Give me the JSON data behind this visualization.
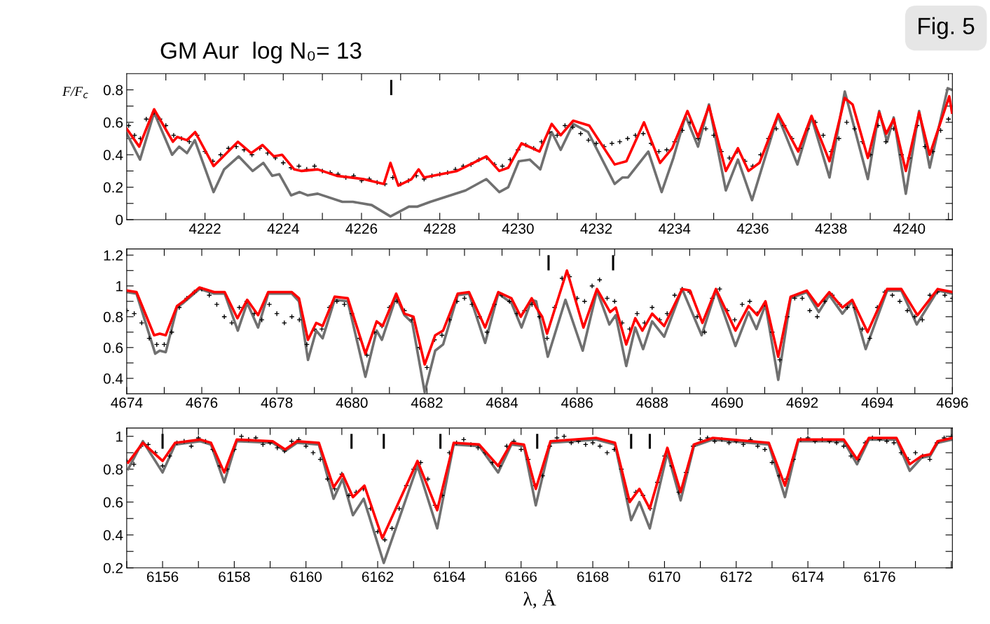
{
  "chart_data": [
    {
      "type": "line",
      "title": "GM Aur  log N₀= 13",
      "ylabel": "F/F$_{c}$",
      "annotations": [
        "Fig. 5"
      ],
      "ref_lines": [
        {
          "axis": "x",
          "value": 4226.76
        }
      ],
      "xlim": [
        4220,
        4241.1
      ],
      "ylim": [
        0,
        0.9
      ],
      "grid": false,
      "line_style": "solid",
      "xticks": [
        {
          "value": 4221,
          "label": null
        },
        4222,
        {
          "value": 4223,
          "label": null
        },
        4224,
        {
          "value": 4225,
          "label": null
        },
        4226,
        {
          "value": 4227,
          "label": null
        },
        4228,
        {
          "value": 4229,
          "label": null
        },
        4230,
        {
          "value": 4231,
          "label": null
        },
        4232,
        {
          "value": 4233,
          "label": null
        },
        4234,
        {
          "value": 4235,
          "label": null
        },
        4236,
        {
          "value": 4237,
          "label": null
        },
        4238,
        {
          "value": 4239,
          "label": null
        },
        4240,
        {
          "value": 4241,
          "label": null
        }
      ],
      "yticks": [
        0,
        {
          "value": 0.1,
          "label": null
        },
        0.2,
        {
          "value": 0.3,
          "label": null
        },
        0.4,
        {
          "value": 0.5,
          "label": null
        },
        0.6,
        {
          "value": 0.7,
          "label": null
        },
        0.8
      ],
      "series": [
        {
          "type": "line",
          "color": "#707070",
          "x": [
            4220.0,
            4220.34,
            4220.7,
            4221.16,
            4221.34,
            4221.54,
            4221.74,
            4222.22,
            4222.49,
            4222.86,
            4223.22,
            4223.49,
            4223.72,
            4223.9,
            4224.2,
            4224.42,
            4224.62,
            4224.88,
            4225.51,
            4225.78,
            4226.26,
            4226.74,
            4227.21,
            4227.42,
            4227.76,
            4228.66,
            4229.19,
            4229.52,
            4229.75,
            4230.02,
            4230.3,
            4230.57,
            4230.86,
            4231.09,
            4231.41,
            4231.79,
            4232.47,
            4232.67,
            4232.81,
            4233.33,
            4233.67,
            4233.97,
            4234.28,
            4234.6,
            4234.88,
            4235.31,
            4235.62,
            4235.98,
            4236.64,
            4237.14,
            4237.5,
            4237.96,
            4238.35,
            4238.94,
            4239.23,
            4239.43,
            4239.6,
            4239.91,
            4240.25,
            4240.52,
            4240.98,
            4241.09
          ],
          "values": [
            0.53,
            0.37,
            0.66,
            0.4,
            0.45,
            0.41,
            0.49,
            0.17,
            0.31,
            0.39,
            0.3,
            0.35,
            0.27,
            0.28,
            0.15,
            0.17,
            0.15,
            0.16,
            0.11,
            0.11,
            0.09,
            0.02,
            0.08,
            0.08,
            0.11,
            0.18,
            0.25,
            0.17,
            0.2,
            0.36,
            0.37,
            0.31,
            0.54,
            0.43,
            0.59,
            0.54,
            0.22,
            0.26,
            0.26,
            0.42,
            0.17,
            0.38,
            0.64,
            0.45,
            0.71,
            0.18,
            0.37,
            0.12,
            0.64,
            0.34,
            0.63,
            0.26,
            0.79,
            0.25,
            0.67,
            0.48,
            0.63,
            0.16,
            0.67,
            0.32,
            0.81,
            0.8
          ]
        },
        {
          "type": "scatter",
          "marker": "cross",
          "color": "#000000",
          "x": [
            4220.05,
            4220.2,
            4220.35,
            4220.5,
            4220.7,
            4220.85,
            4221.0,
            4221.2,
            4221.4,
            4221.6,
            4221.8,
            4222.0,
            4222.2,
            4222.4,
            4222.6,
            4222.8,
            4223.0,
            4223.2,
            4223.4,
            4223.6,
            4223.8,
            4224.0,
            4224.2,
            4224.4,
            4224.6,
            4224.8,
            4225.0,
            4225.2,
            4225.4,
            4225.6,
            4225.8,
            4226.0,
            4226.2,
            4226.4,
            4226.6,
            4226.8,
            4227.0,
            4227.2,
            4227.4,
            4227.6,
            4227.8,
            4228.0,
            4228.2,
            4228.4,
            4228.6,
            4228.8,
            4229.0,
            4229.2,
            4229.4,
            4229.6,
            4229.8,
            4230.0,
            4230.2,
            4230.4,
            4230.6,
            4230.8,
            4231.0,
            4231.2,
            4231.4,
            4231.6,
            4231.8,
            4232.0,
            4232.2,
            4232.4,
            4232.6,
            4232.8,
            4233.0,
            4233.2,
            4233.4,
            4233.6,
            4233.8,
            4234.0,
            4234.2,
            4234.4,
            4234.6,
            4234.8,
            4235.0,
            4235.2,
            4235.4,
            4235.6,
            4235.8,
            4236.0,
            4236.2,
            4236.4,
            4236.6,
            4236.8,
            4237.0,
            4237.2,
            4237.4,
            4237.6,
            4237.8,
            4238.0,
            4238.2,
            4238.4,
            4238.6,
            4238.8,
            4239.0,
            4239.2,
            4239.4,
            4239.6,
            4239.8,
            4240.0,
            4240.2,
            4240.4,
            4240.6,
            4240.8,
            4241.0
          ],
          "values": [
            0.58,
            0.52,
            0.5,
            0.62,
            0.66,
            0.62,
            0.58,
            0.52,
            0.5,
            0.48,
            0.52,
            0.42,
            0.36,
            0.4,
            0.44,
            0.45,
            0.43,
            0.4,
            0.44,
            0.41,
            0.38,
            0.35,
            0.32,
            0.33,
            0.31,
            0.33,
            0.3,
            0.29,
            0.28,
            0.26,
            0.27,
            0.24,
            0.25,
            0.23,
            0.22,
            0.26,
            0.22,
            0.24,
            0.27,
            0.25,
            0.27,
            0.28,
            0.29,
            0.31,
            0.33,
            0.34,
            0.37,
            0.38,
            0.34,
            0.33,
            0.37,
            0.43,
            0.46,
            0.44,
            0.48,
            0.54,
            0.52,
            0.58,
            0.57,
            0.53,
            0.49,
            0.47,
            0.45,
            0.47,
            0.48,
            0.5,
            0.52,
            0.53,
            0.47,
            0.42,
            0.43,
            0.48,
            0.55,
            0.6,
            0.5,
            0.56,
            0.52,
            0.42,
            0.38,
            0.42,
            0.36,
            0.33,
            0.4,
            0.5,
            0.56,
            0.58,
            0.5,
            0.44,
            0.56,
            0.6,
            0.52,
            0.42,
            0.5,
            0.6,
            0.56,
            0.48,
            0.4,
            0.58,
            0.48,
            0.56,
            0.4,
            0.38,
            0.58,
            0.45,
            0.42,
            0.55,
            0.62
          ]
        },
        {
          "type": "line",
          "color": "#ff0000",
          "x": [
            4220.0,
            4220.32,
            4220.7,
            4221.18,
            4221.29,
            4221.54,
            4221.75,
            4222.22,
            4222.84,
            4223.18,
            4223.47,
            4223.76,
            4223.97,
            4224.28,
            4224.47,
            4224.88,
            4225.37,
            4226.05,
            4226.57,
            4226.74,
            4226.94,
            4227.28,
            4227.46,
            4227.6,
            4228.44,
            4229.19,
            4229.52,
            4229.75,
            4230.09,
            4230.55,
            4230.86,
            4231.09,
            4231.41,
            4231.82,
            4232.47,
            4232.77,
            4233.22,
            4233.63,
            4233.94,
            4234.33,
            4234.6,
            4234.88,
            4235.31,
            4235.62,
            4235.89,
            4236.17,
            4236.65,
            4237.16,
            4237.5,
            4237.96,
            4238.35,
            4238.55,
            4238.94,
            4239.23,
            4239.41,
            4239.6,
            4239.91,
            4240.25,
            4240.52,
            4241.02,
            4241.09
          ],
          "values": [
            0.56,
            0.45,
            0.68,
            0.48,
            0.51,
            0.49,
            0.54,
            0.33,
            0.48,
            0.41,
            0.46,
            0.39,
            0.4,
            0.31,
            0.3,
            0.31,
            0.27,
            0.25,
            0.22,
            0.35,
            0.21,
            0.25,
            0.31,
            0.26,
            0.3,
            0.39,
            0.3,
            0.32,
            0.47,
            0.42,
            0.59,
            0.52,
            0.61,
            0.58,
            0.34,
            0.36,
            0.6,
            0.35,
            0.44,
            0.67,
            0.51,
            0.7,
            0.3,
            0.44,
            0.3,
            0.35,
            0.65,
            0.42,
            0.64,
            0.36,
            0.75,
            0.71,
            0.38,
            0.66,
            0.53,
            0.62,
            0.3,
            0.66,
            0.4,
            0.76,
            0.66
          ]
        }
      ]
    },
    {
      "type": "line",
      "ref_lines": [
        {
          "axis": "x",
          "value": 4685.24
        },
        {
          "axis": "x",
          "value": 4686.96
        }
      ],
      "xlim": [
        4674,
        4696
      ],
      "ylim": [
        0.3,
        1.24
      ],
      "grid": false,
      "line_style": "solid",
      "xticks": [
        4674,
        {
          "value": 4675,
          "label": null
        },
        4676,
        {
          "value": 4677,
          "label": null
        },
        4678,
        {
          "value": 4679,
          "label": null
        },
        4680,
        {
          "value": 4681,
          "label": null
        },
        4682,
        {
          "value": 4683,
          "label": null
        },
        4684,
        {
          "value": 4685,
          "label": null
        },
        4686,
        {
          "value": 4687,
          "label": null
        },
        4688,
        {
          "value": 4689,
          "label": null
        },
        4690,
        {
          "value": 4691,
          "label": null
        },
        4692,
        {
          "value": 4693,
          "label": null
        },
        4694,
        {
          "value": 4695,
          "label": null
        },
        4696
      ],
      "yticks": [
        0.4,
        {
          "value": 0.5,
          "label": null
        },
        0.6,
        {
          "value": 0.7,
          "label": null
        },
        0.8,
        {
          "value": 0.9,
          "label": null
        },
        1,
        {
          "value": 1.1,
          "label": null
        },
        1.2
      ],
      "series": [
        {
          "type": "line",
          "color": "#707070",
          "x": [
            4674.0,
            4674.26,
            4674.76,
            4674.88,
            4675.04,
            4675.34,
            4675.51,
            4675.94,
            4676.33,
            4676.61,
            4676.96,
            4677.21,
            4677.5,
            4677.77,
            4678.4,
            4678.59,
            4678.83,
            4679.05,
            4679.22,
            4679.54,
            4679.89,
            4680.36,
            4680.66,
            4680.8,
            4681.18,
            4681.4,
            4681.61,
            4681.94,
            4682.22,
            4682.43,
            4682.82,
            4683.12,
            4683.55,
            4683.9,
            4684.25,
            4684.52,
            4684.79,
            4684.91,
            4685.22,
            4685.69,
            4686.15,
            4686.53,
            4686.86,
            4687.03,
            4687.31,
            4687.55,
            4687.76,
            4688.0,
            4688.32,
            4688.8,
            4689.32,
            4689.7,
            4690.22,
            4690.57,
            4690.78,
            4691.02,
            4691.36,
            4691.69,
            4692.12,
            4692.44,
            4692.72,
            4693.07,
            4693.33,
            4693.69,
            4694.26,
            4694.64,
            4695.05,
            4695.61,
            4696.0
          ],
          "values": [
            0.96,
            0.95,
            0.56,
            0.58,
            0.57,
            0.86,
            0.89,
            0.98,
            0.95,
            0.95,
            0.71,
            0.89,
            0.73,
            0.95,
            0.95,
            0.9,
            0.52,
            0.71,
            0.66,
            0.91,
            0.9,
            0.41,
            0.71,
            0.65,
            0.93,
            0.81,
            0.76,
            0.31,
            0.58,
            0.62,
            0.94,
            0.95,
            0.63,
            0.95,
            0.89,
            0.73,
            0.91,
            0.9,
            0.54,
            0.91,
            0.58,
            0.97,
            0.75,
            0.81,
            0.48,
            0.73,
            0.59,
            0.77,
            0.67,
            0.98,
            0.68,
            0.97,
            0.61,
            0.83,
            0.72,
            0.88,
            0.39,
            0.92,
            0.96,
            0.83,
            0.94,
            0.82,
            0.9,
            0.59,
            0.97,
            0.97,
            0.75,
            0.97,
            0.95
          ]
        },
        {
          "type": "scatter",
          "marker": "cross",
          "color": "#000000",
          "x": [
            4674.0,
            4674.2,
            4674.4,
            4674.6,
            4674.8,
            4675.0,
            4675.2,
            4675.4,
            4675.6,
            4675.8,
            4676.0,
            4676.2,
            4676.4,
            4676.6,
            4676.8,
            4677.0,
            4677.2,
            4677.4,
            4677.6,
            4677.8,
            4678.0,
            4678.2,
            4678.4,
            4678.6,
            4678.8,
            4679.0,
            4679.2,
            4679.4,
            4679.6,
            4679.8,
            4680.0,
            4680.2,
            4680.4,
            4680.6,
            4680.8,
            4681.0,
            4681.2,
            4681.4,
            4681.6,
            4681.8,
            4682.0,
            4682.2,
            4682.4,
            4682.6,
            4682.8,
            4683.0,
            4683.2,
            4683.4,
            4683.6,
            4683.8,
            4684.0,
            4684.2,
            4684.4,
            4684.6,
            4684.8,
            4685.0,
            4685.2,
            4685.4,
            4685.6,
            4685.8,
            4686.0,
            4686.2,
            4686.4,
            4686.6,
            4686.8,
            4687.0,
            4687.2,
            4687.4,
            4687.6,
            4687.8,
            4688.0,
            4688.2,
            4688.4,
            4688.6,
            4688.8,
            4689.0,
            4689.2,
            4689.4,
            4689.6,
            4689.8,
            4690.0,
            4690.2,
            4690.4,
            4690.6,
            4690.8,
            4691.0,
            4691.2,
            4691.4,
            4691.6,
            4691.8,
            4692.0,
            4692.2,
            4692.4,
            4692.6,
            4692.8,
            4693.0,
            4693.2,
            4693.4,
            4693.6,
            4693.8,
            4694.0,
            4694.2,
            4694.4,
            4694.6,
            4694.8,
            4695.0,
            4695.2,
            4695.4,
            4695.6,
            4695.8,
            4696.0
          ],
          "values": [
            0.84,
            0.82,
            0.76,
            0.66,
            0.62,
            0.62,
            0.7,
            0.86,
            0.92,
            0.96,
            0.98,
            0.94,
            0.88,
            0.8,
            0.76,
            0.86,
            0.9,
            0.82,
            0.78,
            0.88,
            0.82,
            0.76,
            0.8,
            0.78,
            0.62,
            0.72,
            0.72,
            0.86,
            0.9,
            0.88,
            0.82,
            0.66,
            0.55,
            0.7,
            0.74,
            0.86,
            0.9,
            0.84,
            0.78,
            0.6,
            0.47,
            0.65,
            0.68,
            0.78,
            0.9,
            0.92,
            0.88,
            0.8,
            0.7,
            0.88,
            0.94,
            0.9,
            0.82,
            0.84,
            0.88,
            0.8,
            0.66,
            0.86,
            1.05,
            1.06,
            0.92,
            0.9,
            1.0,
            1.04,
            0.92,
            0.9,
            0.76,
            0.72,
            0.82,
            0.76,
            0.86,
            0.78,
            0.82,
            0.94,
            0.98,
            0.96,
            0.8,
            0.7,
            0.92,
            0.98,
            0.84,
            0.78,
            0.88,
            0.9,
            0.82,
            0.88,
            0.7,
            0.52,
            0.8,
            0.92,
            0.92,
            0.84,
            0.8,
            0.9,
            0.94,
            0.88,
            0.86,
            0.86,
            0.72,
            0.66,
            0.86,
            0.96,
            0.94,
            0.9,
            0.84,
            0.8,
            0.78,
            0.94,
            0.96,
            0.94,
            0.92
          ]
        },
        {
          "type": "line",
          "color": "#ff0000",
          "x": [
            4674.0,
            4674.26,
            4674.73,
            4674.88,
            4675.04,
            4675.34,
            4675.51,
            4675.94,
            4676.33,
            4676.61,
            4676.95,
            4677.21,
            4677.5,
            4677.77,
            4678.4,
            4678.59,
            4678.83,
            4679.05,
            4679.22,
            4679.54,
            4679.89,
            4680.36,
            4680.66,
            4680.82,
            4681.18,
            4681.4,
            4681.64,
            4681.94,
            4682.22,
            4682.43,
            4682.82,
            4683.12,
            4683.55,
            4683.9,
            4684.25,
            4684.5,
            4684.79,
            4684.91,
            4685.07,
            4685.2,
            4685.73,
            4686.17,
            4686.53,
            4686.88,
            4687.03,
            4687.31,
            4687.55,
            4687.74,
            4688.0,
            4688.32,
            4688.8,
            4689.01,
            4689.34,
            4689.7,
            4690.22,
            4690.57,
            4690.8,
            4691.02,
            4691.36,
            4691.69,
            4692.12,
            4692.42,
            4692.72,
            4693.07,
            4693.33,
            4693.74,
            4694.26,
            4694.64,
            4695.07,
            4695.61,
            4696.0
          ],
          "values": [
            0.97,
            0.96,
            0.68,
            0.69,
            0.68,
            0.87,
            0.9,
            0.99,
            0.96,
            0.96,
            0.79,
            0.91,
            0.81,
            0.96,
            0.96,
            0.92,
            0.65,
            0.76,
            0.74,
            0.93,
            0.92,
            0.56,
            0.77,
            0.74,
            0.95,
            0.82,
            0.8,
            0.49,
            0.68,
            0.71,
            0.95,
            0.96,
            0.73,
            0.96,
            0.92,
            0.8,
            0.92,
            0.86,
            0.8,
            0.69,
            1.1,
            0.73,
            0.98,
            0.83,
            0.86,
            0.62,
            0.79,
            0.71,
            0.82,
            0.74,
            0.98,
            0.97,
            0.76,
            0.98,
            0.71,
            0.87,
            0.81,
            0.9,
            0.54,
            0.93,
            0.97,
            0.87,
            0.96,
            0.86,
            0.91,
            0.7,
            0.98,
            0.98,
            0.81,
            0.98,
            0.96
          ]
        }
      ]
    },
    {
      "type": "line",
      "xlabel": "λ, Å",
      "ref_lines": [
        {
          "axis": "x",
          "value": 6156.0
        },
        {
          "axis": "x",
          "value": 6161.27
        },
        {
          "axis": "x",
          "value": 6162.17
        },
        {
          "axis": "x",
          "value": 6163.75
        },
        {
          "axis": "x",
          "value": 6166.45
        },
        {
          "axis": "x",
          "value": 6169.07
        },
        {
          "axis": "x",
          "value": 6169.59
        }
      ],
      "xlim": [
        6155,
        6178.03
      ],
      "ylim": [
        0.2,
        1.05
      ],
      "grid": false,
      "line_style": "solid",
      "xticks": [
        {
          "value": 6155,
          "label": null
        },
        6156,
        {
          "value": 6157,
          "label": null
        },
        6158,
        {
          "value": 6159,
          "label": null
        },
        6160,
        {
          "value": 6161,
          "label": null
        },
        6162,
        {
          "value": 6163,
          "label": null
        },
        6164,
        {
          "value": 6165,
          "label": null
        },
        6166,
        {
          "value": 6167,
          "label": null
        },
        6168,
        {
          "value": 6169,
          "label": null
        },
        6170,
        {
          "value": 6171,
          "label": null
        },
        6172,
        {
          "value": 6173,
          "label": null
        },
        6174,
        {
          "value": 6175,
          "label": null
        },
        6176,
        {
          "value": 6177,
          "label": null
        },
        {
          "value": 6178,
          "label": null
        }
      ],
      "yticks": [
        0.2,
        {
          "value": 0.3,
          "label": null
        },
        0.4,
        {
          "value": 0.5,
          "label": null
        },
        0.6,
        {
          "value": 0.7,
          "label": null
        },
        0.8,
        {
          "value": 0.9,
          "label": null
        },
        1
      ],
      "series": [
        {
          "type": "line",
          "color": "#707070",
          "x": [
            6155.04,
            6155.45,
            6156.0,
            6156.35,
            6157.05,
            6157.35,
            6157.72,
            6158.07,
            6159.07,
            6159.42,
            6159.75,
            6160.36,
            6160.77,
            6161.02,
            6161.31,
            6161.61,
            6162.17,
            6163.11,
            6163.66,
            6164.12,
            6164.83,
            6165.36,
            6165.73,
            6166.08,
            6166.41,
            6166.82,
            6168.09,
            6168.62,
            6169.07,
            6169.3,
            6169.59,
            6170.08,
            6170.45,
            6170.82,
            6171.35,
            6172.91,
            6173.36,
            6173.73,
            6175.0,
            6175.37,
            6175.7,
            6176.47,
            6176.84,
            6177.17,
            6177.41,
            6177.62,
            6178.03
          ],
          "values": [
            0.8,
            0.97,
            0.78,
            0.95,
            0.97,
            0.95,
            0.72,
            0.97,
            0.96,
            0.91,
            0.96,
            0.95,
            0.62,
            0.74,
            0.52,
            0.62,
            0.23,
            0.82,
            0.44,
            0.95,
            0.94,
            0.78,
            0.95,
            0.94,
            0.58,
            0.96,
            0.98,
            0.95,
            0.49,
            0.6,
            0.44,
            0.9,
            0.61,
            0.94,
            0.98,
            0.95,
            0.63,
            0.97,
            0.97,
            0.83,
            0.98,
            0.98,
            0.79,
            0.87,
            0.88,
            0.96,
            0.98
          ]
        },
        {
          "type": "scatter",
          "marker": "cross",
          "color": "#000000",
          "x": [
            6155.0,
            6155.2,
            6155.4,
            6155.6,
            6155.8,
            6156.0,
            6156.2,
            6156.4,
            6156.6,
            6156.8,
            6157.0,
            6157.2,
            6157.4,
            6157.6,
            6157.8,
            6158.0,
            6158.2,
            6158.4,
            6158.6,
            6158.8,
            6159.0,
            6159.2,
            6159.4,
            6159.6,
            6159.8,
            6160.0,
            6160.2,
            6160.4,
            6160.6,
            6160.8,
            6161.0,
            6161.2,
            6161.4,
            6161.6,
            6161.8,
            6162.0,
            6162.2,
            6162.4,
            6162.6,
            6162.8,
            6163.0,
            6163.2,
            6163.4,
            6163.6,
            6163.8,
            6164.0,
            6164.2,
            6164.4,
            6164.6,
            6164.8,
            6165.0,
            6165.2,
            6165.4,
            6165.6,
            6165.8,
            6166.0,
            6166.2,
            6166.4,
            6166.6,
            6166.8,
            6167.0,
            6167.2,
            6167.4,
            6167.6,
            6167.8,
            6168.0,
            6168.2,
            6168.4,
            6168.6,
            6168.8,
            6169.0,
            6169.2,
            6169.4,
            6169.6,
            6169.8,
            6170.0,
            6170.2,
            6170.4,
            6170.6,
            6170.8,
            6171.0,
            6171.2,
            6171.4,
            6171.6,
            6171.8,
            6172.0,
            6172.2,
            6172.4,
            6172.6,
            6172.8,
            6173.0,
            6173.2,
            6173.4,
            6173.6,
            6173.8,
            6174.0,
            6174.2,
            6174.4,
            6174.6,
            6174.8,
            6175.0,
            6175.2,
            6175.4,
            6175.6,
            6175.8,
            6176.0,
            6176.2,
            6176.4,
            6176.6,
            6176.8,
            6177.0,
            6177.2,
            6177.4,
            6177.6,
            6177.8,
            6178.0
          ],
          "values": [
            0.85,
            0.83,
            0.94,
            0.95,
            0.9,
            0.82,
            0.88,
            0.96,
            0.97,
            0.94,
            0.99,
            0.97,
            0.92,
            0.82,
            0.8,
            0.92,
            1.0,
            0.98,
            0.99,
            0.95,
            0.96,
            0.93,
            0.91,
            0.97,
            0.98,
            0.94,
            0.9,
            0.86,
            0.74,
            0.68,
            0.77,
            0.64,
            0.66,
            0.68,
            0.56,
            0.42,
            0.37,
            0.44,
            0.56,
            0.7,
            0.8,
            0.84,
            0.74,
            0.58,
            0.64,
            0.9,
            0.96,
            0.98,
            0.95,
            0.93,
            0.9,
            0.84,
            0.82,
            0.94,
            0.97,
            0.92,
            0.86,
            0.7,
            0.76,
            0.94,
            0.99,
            1.0,
            0.96,
            0.97,
            0.95,
            0.96,
            0.94,
            0.9,
            0.92,
            0.8,
            0.62,
            0.66,
            0.64,
            0.56,
            0.72,
            0.88,
            0.82,
            0.66,
            0.78,
            0.94,
            0.98,
            0.99,
            0.97,
            0.98,
            0.96,
            0.97,
            0.95,
            0.98,
            0.94,
            0.92,
            0.84,
            0.76,
            0.74,
            0.86,
            0.98,
            0.99,
            0.97,
            0.98,
            0.97,
            0.96,
            0.94,
            0.88,
            0.86,
            0.96,
            0.99,
            0.98,
            0.97,
            0.96,
            0.9,
            0.86,
            0.9,
            0.88,
            0.86,
            0.96,
            0.99,
            1.0
          ]
        },
        {
          "type": "line",
          "color": "#ff0000",
          "x": [
            6155.04,
            6155.45,
            6156.0,
            6156.35,
            6157.05,
            6157.35,
            6157.72,
            6158.07,
            6159.07,
            6159.42,
            6159.75,
            6160.36,
            6160.77,
            6161.02,
            6161.31,
            6161.63,
            6162.13,
            6163.11,
            6163.66,
            6164.12,
            6164.83,
            6165.36,
            6165.73,
            6166.08,
            6166.41,
            6166.82,
            6168.09,
            6168.62,
            6169.03,
            6169.3,
            6169.59,
            6170.08,
            6170.45,
            6170.82,
            6171.35,
            6172.91,
            6173.36,
            6173.73,
            6175.0,
            6175.37,
            6175.7,
            6176.47,
            6176.84,
            6177.17,
            6177.41,
            6177.62,
            6178.03
          ],
          "values": [
            0.84,
            0.96,
            0.85,
            0.96,
            0.98,
            0.96,
            0.78,
            0.98,
            0.97,
            0.92,
            0.97,
            0.96,
            0.69,
            0.77,
            0.63,
            0.7,
            0.38,
            0.85,
            0.55,
            0.96,
            0.95,
            0.82,
            0.96,
            0.95,
            0.68,
            0.97,
            0.99,
            0.96,
            0.6,
            0.68,
            0.56,
            0.93,
            0.66,
            0.95,
            0.99,
            0.96,
            0.7,
            0.98,
            0.98,
            0.86,
            0.99,
            0.99,
            0.83,
            0.88,
            0.89,
            0.97,
            0.99
          ]
        }
      ]
    }
  ]
}
